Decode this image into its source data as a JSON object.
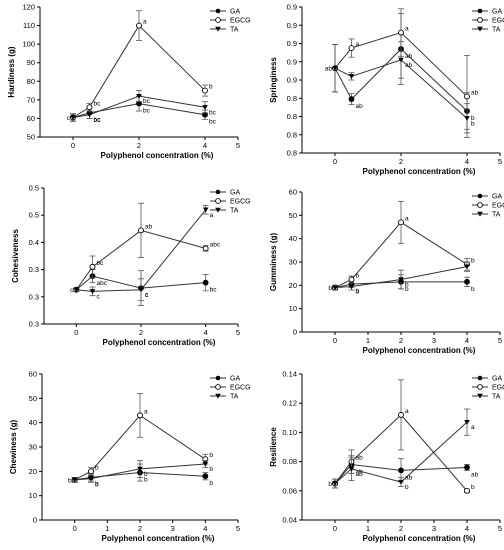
{
  "chart_data": [
    {
      "type": "line",
      "xlabel": "Polyphenol concentration (%)",
      "ylabel": "Hardiness (g)",
      "xlim": [
        -1,
        5
      ],
      "ylim": [
        50,
        120
      ],
      "xticks": [
        0,
        2,
        4,
        5
      ],
      "yticks": [
        50,
        60,
        70,
        80,
        90,
        100,
        110,
        120
      ],
      "legend_position": "top-right",
      "series": [
        {
          "name": "GA",
          "marker": "filled-circle",
          "x": [
            0,
            0.5,
            2,
            4
          ],
          "y": [
            60.5,
            63,
            68,
            62
          ],
          "err": [
            2,
            3,
            4,
            2.5
          ],
          "labels": [
            "c",
            "bc",
            "bc",
            "bc"
          ]
        },
        {
          "name": "EGCG",
          "marker": "open-circle",
          "x": [
            0,
            0.5,
            2,
            4
          ],
          "y": [
            60.5,
            66,
            110,
            75
          ],
          "err": [
            2,
            2,
            8,
            3
          ],
          "labels": [
            "",
            "bc",
            "a",
            "b"
          ]
        },
        {
          "name": "TA",
          "marker": "triangle",
          "x": [
            0,
            0.5,
            2,
            4
          ],
          "y": [
            60.5,
            62,
            72,
            66
          ],
          "err": [
            2,
            2,
            3,
            3
          ],
          "labels": [
            "",
            "bc",
            "bc",
            "bc"
          ]
        }
      ]
    },
    {
      "type": "line",
      "xlabel": "Polyphenol concentration (%)",
      "ylabel": "Springiness",
      "xlim": [
        -1,
        5
      ],
      "ylim": [
        0.78,
        0.94
      ],
      "xticks": [
        0,
        2,
        4,
        5
      ],
      "yticks": [
        0.78,
        0.8,
        0.82,
        0.84,
        0.86,
        0.88,
        0.9,
        0.92,
        0.94
      ],
      "legend_position": "top-right",
      "series": [
        {
          "name": "GA",
          "marker": "filled-circle",
          "x": [
            0,
            0.5,
            2,
            4
          ],
          "y": [
            0.873,
            0.839,
            0.894,
            0.826
          ],
          "err": [
            0.026,
            0.006,
            0.039,
            0.02
          ],
          "labels": [
            "ab",
            "ab",
            "ab",
            "b"
          ]
        },
        {
          "name": "EGCG",
          "marker": "open-circle",
          "x": [
            0,
            0.5,
            2,
            4
          ],
          "y": [
            0.873,
            0.895,
            0.912,
            0.842
          ],
          "err": [
            0.026,
            0.01,
            0.026,
            0.045
          ],
          "labels": [
            "",
            "a",
            "a",
            "ab"
          ]
        },
        {
          "name": "TA",
          "marker": "triangle",
          "x": [
            0,
            0.5,
            2,
            4
          ],
          "y": [
            0.873,
            0.864,
            0.882,
            0.818
          ],
          "err": [
            0.026,
            0.004,
            0.02,
            0.016
          ],
          "labels": [
            "",
            "",
            "ab",
            "b"
          ]
        }
      ]
    },
    {
      "type": "line",
      "xlabel": "Polyphenol concentration (%)",
      "ylabel": "Cohesiveness",
      "xlim": [
        -1,
        5
      ],
      "ylim": [
        0.25,
        0.5
      ],
      "xticks": [
        0,
        2,
        4,
        5
      ],
      "yticks": [
        0.25,
        0.3,
        0.35,
        0.4,
        0.45,
        0.5
      ],
      "legend_position": "top-right",
      "series": [
        {
          "name": "GA",
          "marker": "filled-circle",
          "x": [
            0,
            0.5,
            2,
            4
          ],
          "y": [
            0.313,
            0.338,
            0.316,
            0.326
          ],
          "err": [
            0.003,
            0.012,
            0.032,
            0.015
          ],
          "labels": [
            "c",
            "abc",
            "c",
            "bc"
          ]
        },
        {
          "name": "EGCG",
          "marker": "open-circle",
          "x": [
            0,
            0.5,
            2,
            4
          ],
          "y": [
            0.313,
            0.355,
            0.422,
            0.389
          ],
          "err": [
            0.003,
            0.02,
            0.05,
            0.005
          ],
          "labels": [
            "",
            "bc",
            "ab",
            "abc"
          ]
        },
        {
          "name": "TA",
          "marker": "triangle",
          "x": [
            0,
            0.5,
            2,
            4
          ],
          "y": [
            0.313,
            0.31,
            0.313,
            0.46
          ],
          "err": [
            0.003,
            0.008,
            0.02,
            0.008
          ],
          "labels": [
            "",
            "c",
            "c",
            "a"
          ]
        }
      ]
    },
    {
      "type": "line",
      "xlabel": "Polyphenol concentration (%)",
      "ylabel": "Gumminess (g)",
      "xlim": [
        -1,
        5
      ],
      "ylim": [
        0,
        60
      ],
      "xticks": [
        0,
        1,
        2,
        3,
        4,
        5
      ],
      "yticks": [
        0,
        10,
        20,
        30,
        40,
        50,
        60
      ],
      "legend_position": "top-right",
      "series": [
        {
          "name": "GA",
          "marker": "filled-circle",
          "x": [
            0,
            0.5,
            2,
            4
          ],
          "y": [
            19,
            20.5,
            21.5,
            21.5
          ],
          "err": [
            1,
            1.5,
            3,
            2
          ],
          "labels": [
            "b",
            "b",
            "b",
            "b"
          ]
        },
        {
          "name": "EGCG",
          "marker": "open-circle",
          "x": [
            0,
            0.5,
            2,
            4
          ],
          "y": [
            19,
            22.5,
            47,
            29
          ],
          "err": [
            1,
            1.5,
            9,
            2.5
          ],
          "labels": [
            "",
            "b",
            "a",
            "b"
          ]
        },
        {
          "name": "TA",
          "marker": "triangle",
          "x": [
            0,
            0.5,
            2,
            4
          ],
          "y": [
            19,
            19.5,
            22.5,
            28
          ],
          "err": [
            1,
            1.5,
            4,
            2
          ],
          "labels": [
            "",
            "b",
            "b",
            ""
          ]
        }
      ]
    },
    {
      "type": "line",
      "xlabel": "Polyphenol concentration (%)",
      "ylabel": "Chewiness (g)",
      "xlim": [
        -1,
        5
      ],
      "ylim": [
        0,
        60
      ],
      "xticks": [
        0,
        1,
        2,
        3,
        4,
        5
      ],
      "yticks": [
        0,
        10,
        20,
        30,
        40,
        50,
        60
      ],
      "legend_position": "top-right",
      "series": [
        {
          "name": "GA",
          "marker": "filled-circle",
          "x": [
            0,
            0.5,
            2,
            4
          ],
          "y": [
            16.5,
            17.5,
            19.5,
            18
          ],
          "err": [
            1,
            1.5,
            3.5,
            1.5
          ],
          "labels": [
            "b",
            "b",
            "b",
            "b"
          ]
        },
        {
          "name": "EGCG",
          "marker": "open-circle",
          "x": [
            0,
            0.5,
            2,
            4
          ],
          "y": [
            16.5,
            20,
            43,
            25
          ],
          "err": [
            1,
            1.5,
            9,
            2
          ],
          "labels": [
            "",
            "b",
            "a",
            "b"
          ]
        },
        {
          "name": "TA",
          "marker": "triangle",
          "x": [
            0,
            0.5,
            2,
            4
          ],
          "y": [
            16.5,
            17,
            21,
            23
          ],
          "err": [
            1,
            1.5,
            3.5,
            1.5
          ],
          "labels": [
            "",
            "b",
            "b",
            "b"
          ]
        }
      ]
    },
    {
      "type": "line",
      "xlabel": "Polyphenol concentration (%)",
      "ylabel": "Resilience",
      "xlim": [
        -1,
        5
      ],
      "ylim": [
        0.04,
        0.14
      ],
      "xticks": [
        0,
        1,
        2,
        3,
        4,
        5
      ],
      "yticks": [
        0.04,
        0.06,
        0.08,
        0.1,
        0.12,
        0.14
      ],
      "legend_position": "top-right",
      "series": [
        {
          "name": "GA",
          "marker": "filled-circle",
          "x": [
            0,
            0.5,
            2,
            4
          ],
          "y": [
            0.065,
            0.078,
            0.074,
            0.076
          ],
          "err": [
            0.003,
            0.006,
            0.008,
            0.002
          ],
          "labels": [
            "b",
            "ab",
            "ab",
            "ab"
          ]
        },
        {
          "name": "EGCG",
          "marker": "open-circle",
          "x": [
            0,
            0.5,
            2,
            4
          ],
          "y": [
            0.065,
            0.08,
            0.112,
            0.06
          ],
          "err": [
            0.003,
            0.008,
            0.024,
            0.001
          ],
          "labels": [
            "",
            "ab",
            "a",
            "b"
          ]
        },
        {
          "name": "TA",
          "marker": "triangle",
          "x": [
            0,
            0.5,
            2,
            4
          ],
          "y": [
            0.065,
            0.075,
            0.066,
            0.107
          ],
          "err": [
            0.003,
            0.008,
            0.003,
            0.009
          ],
          "labels": [
            "",
            "ab",
            "b",
            "a"
          ]
        }
      ]
    }
  ]
}
